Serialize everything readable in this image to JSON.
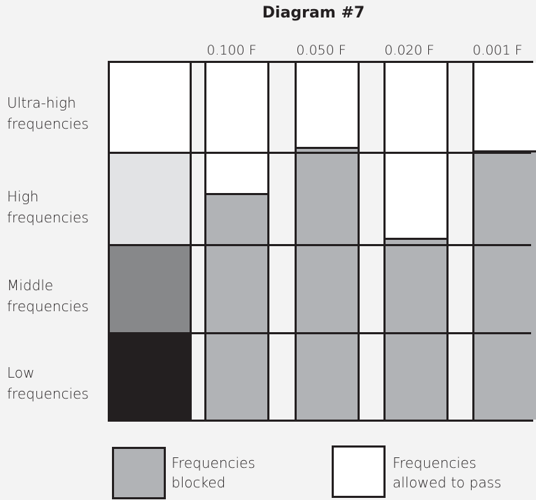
{
  "title": "Diagram #7",
  "columns": [
    "0.100 F",
    "0.050 F",
    "0.020 F",
    "0.001 F"
  ],
  "rows": [
    {
      "line1": "Ultra-high",
      "line2": "frequencies"
    },
    {
      "line1": "High",
      "line2": "frequencies"
    },
    {
      "line1": "Middle",
      "line2": "frequencies"
    },
    {
      "line1": "Low",
      "line2": "frequencies"
    }
  ],
  "legend": {
    "blocked_line1": "Frequencies",
    "blocked_line2": "blocked",
    "pass_line1": "Frequencies",
    "pass_line2": "allowed to pass"
  },
  "colors": {
    "blocked": "#b1b3b6",
    "pass": "#ffffff",
    "ultra_high_swatch": "#ffffff",
    "high_swatch": "#e2e3e5",
    "middle_swatch": "#87888a",
    "low_swatch": "#231f20"
  },
  "blocked_fraction_by_column": [
    0.635,
    0.765,
    0.51,
    0.755
  ]
}
